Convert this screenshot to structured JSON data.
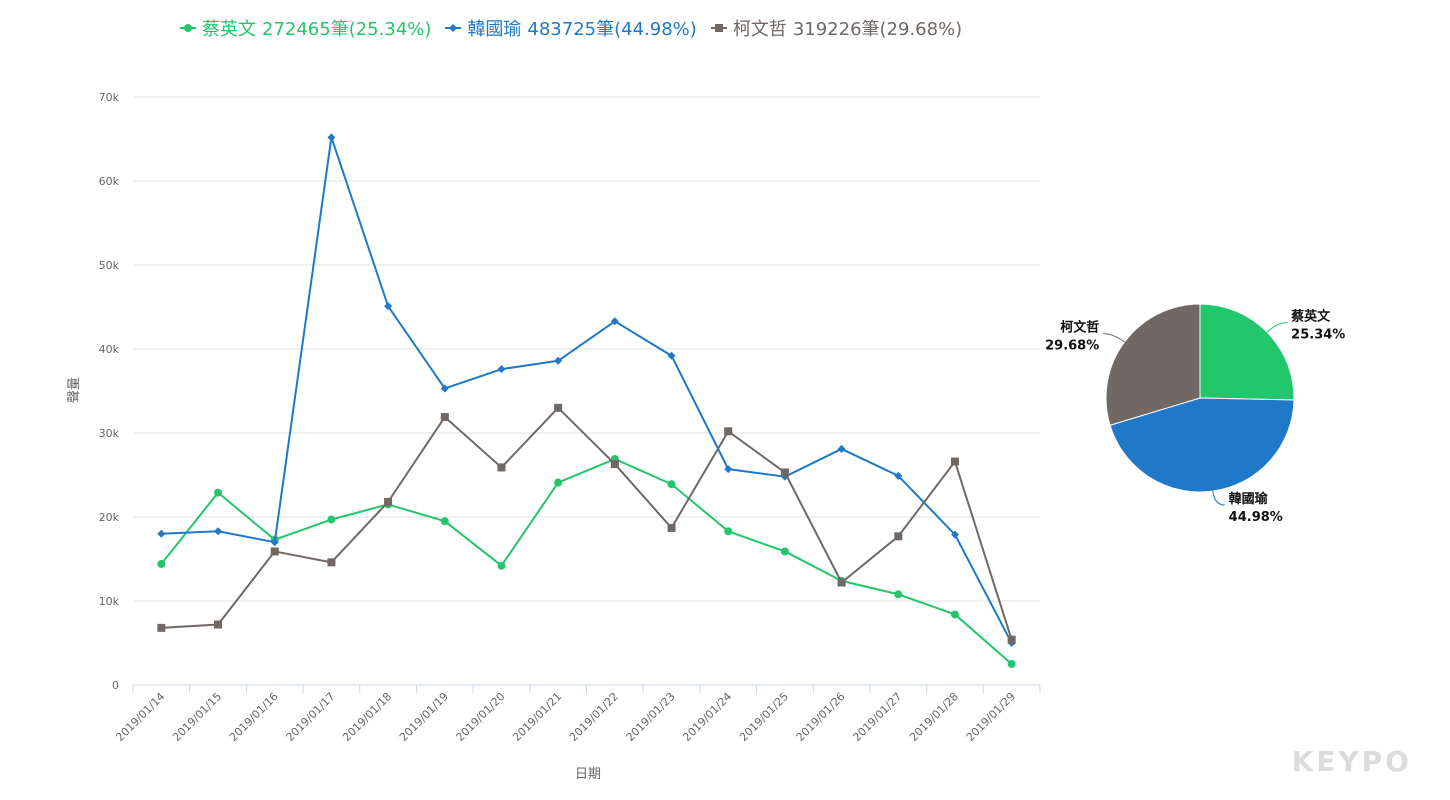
{
  "legend": [
    {
      "name": "蔡英文",
      "summary": "272465筆(25.34%)",
      "color": "#22c66b",
      "marker": "circle"
    },
    {
      "name": "韓國瑜",
      "summary": "483725筆(44.98%)",
      "color": "#1f78c8",
      "marker": "diamond"
    },
    {
      "name": "柯文哲",
      "summary": "319226筆(29.68%)",
      "color": "#706864",
      "marker": "square"
    }
  ],
  "watermark": "KEYPO",
  "chart_data": [
    {
      "type": "line",
      "xlabel": "日期",
      "ylabel": "聲量",
      "ylim": [
        0,
        70000
      ],
      "yticks": [
        0,
        10000,
        20000,
        30000,
        40000,
        50000,
        60000,
        70000
      ],
      "ytick_labels": [
        "0",
        "10k",
        "20k",
        "30k",
        "40k",
        "50k",
        "60k",
        "70k"
      ],
      "grid": true,
      "legend_position": "top-left",
      "categories": [
        "2019/01/14",
        "2019/01/15",
        "2019/01/16",
        "2019/01/17",
        "2019/01/18",
        "2019/01/19",
        "2019/01/20",
        "2019/01/21",
        "2019/01/22",
        "2019/01/23",
        "2019/01/24",
        "2019/01/25",
        "2019/01/26",
        "2019/01/27",
        "2019/01/28",
        "2019/01/29"
      ],
      "series": [
        {
          "name": "蔡英文",
          "color": "#22c66b",
          "marker": "circle",
          "values": [
            14400,
            22900,
            17300,
            19700,
            21500,
            19500,
            14200,
            24100,
            26900,
            23900,
            18300,
            15900,
            12400,
            10800,
            8400,
            2500
          ]
        },
        {
          "name": "韓國瑜",
          "color": "#1f78c8",
          "marker": "diamond",
          "values": [
            18000,
            18300,
            17000,
            65200,
            45100,
            35300,
            37600,
            38600,
            43300,
            39200,
            25700,
            24800,
            28100,
            24900,
            17900,
            5000
          ]
        },
        {
          "name": "柯文哲",
          "color": "#706864",
          "marker": "square",
          "values": [
            6800,
            7200,
            15900,
            14600,
            21800,
            31900,
            25900,
            33000,
            26300,
            18700,
            30200,
            25300,
            12200,
            17700,
            26600,
            5400
          ]
        }
      ]
    },
    {
      "type": "pie",
      "slices": [
        {
          "label": "蔡英文",
          "percent_label": "25.34%",
          "value": 25.34,
          "color": "#22c66b"
        },
        {
          "label": "韓國瑜",
          "percent_label": "44.98%",
          "value": 44.98,
          "color": "#1f78c8"
        },
        {
          "label": "柯文哲",
          "percent_label": "29.68%",
          "value": 29.68,
          "color": "#706864"
        }
      ]
    }
  ]
}
